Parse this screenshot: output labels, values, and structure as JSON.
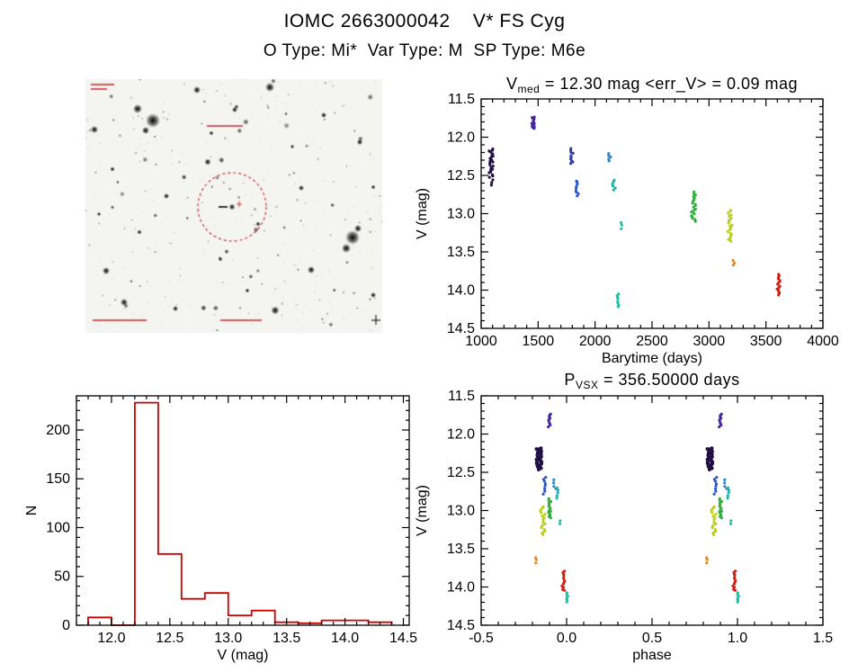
{
  "page": {
    "title": "IOMC 2663000042    V* FS Cyg",
    "subtitle": "O Type: Mi*  Var Type: M  SP Type: M6e"
  },
  "finder": {
    "background": "#f4f4f1",
    "circle_color": "#cc3333",
    "annotation_color": "#cc3333",
    "star_color": "#0a0a0c"
  },
  "colors": {
    "axis": "#000000",
    "histogram": "#cf0000"
  },
  "chart_data": [
    {
      "id": "light-curve",
      "type": "scatter",
      "title": {
        "var": "V",
        "var_sub": "med",
        "rest": " = 12.30 mag <err_V> = 0.09 mag"
      },
      "xlabel": "Barytime (days)",
      "ylabel": "V (mag)",
      "xlim": [
        1000,
        4000
      ],
      "ylim": [
        11.5,
        14.5
      ],
      "y_inverted": true,
      "xticks": [
        1000,
        1500,
        2000,
        2500,
        3000,
        3500,
        4000
      ],
      "xtick_labels": [
        "1000",
        "1500",
        "2000",
        "2500",
        "3000",
        "3500",
        "4000"
      ],
      "yticks": [
        11.5,
        12.0,
        12.5,
        13.0,
        13.5,
        14.0,
        14.5
      ],
      "ytick_labels": [
        "11.5",
        "12.0",
        "12.5",
        "13.0",
        "13.5",
        "14.0",
        "14.5"
      ],
      "x_minor": 100,
      "y_minor": 0.1,
      "clusters": [
        {
          "x": 1090,
          "v_min": 12.15,
          "v_max": 12.52,
          "n": 24,
          "color": "#201044"
        },
        {
          "x": 1092,
          "v_min": 12.56,
          "v_max": 12.63,
          "n": 3,
          "color": "#201044"
        },
        {
          "x": 1455,
          "v_min": 11.73,
          "v_max": 11.89,
          "n": 14,
          "color": "#46269e"
        },
        {
          "x": 1795,
          "v_min": 12.15,
          "v_max": 12.35,
          "n": 10,
          "color": "#2e3ea8"
        },
        {
          "x": 1845,
          "v_min": 12.57,
          "v_max": 12.77,
          "n": 9,
          "color": "#2b55cc"
        },
        {
          "x": 2125,
          "v_min": 12.22,
          "v_max": 12.31,
          "n": 5,
          "color": "#2e86c8"
        },
        {
          "x": 2165,
          "v_min": 12.56,
          "v_max": 12.69,
          "n": 6,
          "color": "#1db4ae"
        },
        {
          "x": 2230,
          "v_min": 13.12,
          "v_max": 13.19,
          "n": 3,
          "color": "#16c2a2"
        },
        {
          "x": 2195,
          "v_min": 14.05,
          "v_max": 14.22,
          "n": 8,
          "color": "#16c2a2"
        },
        {
          "x": 2865,
          "v_min": 12.72,
          "v_max": 13.1,
          "n": 20,
          "color": "#2fae3c"
        },
        {
          "x": 3185,
          "v_min": 12.95,
          "v_max": 13.36,
          "n": 20,
          "color": "#bccc1e"
        },
        {
          "x": 3215,
          "v_min": 13.61,
          "v_max": 13.68,
          "n": 3,
          "color": "#e2891c"
        },
        {
          "x": 3610,
          "v_min": 13.79,
          "v_max": 14.06,
          "n": 15,
          "color": "#cf2014"
        }
      ]
    },
    {
      "id": "histogram",
      "type": "bar",
      "xlabel": "V (mag)",
      "ylabel": "N",
      "xlim": [
        11.7,
        14.55
      ],
      "ylim": [
        0,
        235
      ],
      "y_inverted": false,
      "xticks": [
        12.0,
        12.5,
        13.0,
        13.5,
        14.0,
        14.5
      ],
      "xtick_labels": [
        "12.0",
        "12.5",
        "13.0",
        "13.5",
        "14.0",
        "14.5"
      ],
      "yticks": [
        0,
        50,
        100,
        150,
        200
      ],
      "ytick_labels": [
        "0",
        "50",
        "100",
        "150",
        "200"
      ],
      "x_minor": 0.1,
      "y_minor": 10,
      "color": "#cf0000",
      "bin_start": 11.8,
      "bin_width": 0.2,
      "counts": [
        8,
        0,
        228,
        73,
        27,
        33,
        10,
        15,
        3,
        2,
        5,
        5,
        3
      ]
    },
    {
      "id": "phase-curve",
      "type": "scatter",
      "title": {
        "var": "P",
        "var_sub": "VSX",
        "rest": " = 356.50000 days"
      },
      "xlabel": "phase",
      "ylabel": "V (mag)",
      "xlim": [
        -0.5,
        1.5
      ],
      "ylim": [
        11.5,
        14.5
      ],
      "y_inverted": true,
      "fold_offset": 1,
      "xticks": [
        -0.5,
        0.0,
        0.5,
        1.0,
        1.5
      ],
      "xtick_labels": [
        "-0.5",
        "0.0",
        "0.5",
        "1.0",
        "1.5"
      ],
      "yticks": [
        11.5,
        12.0,
        12.5,
        13.0,
        13.5,
        14.0,
        14.5
      ],
      "ytick_labels": [
        "11.5",
        "12.0",
        "12.5",
        "13.0",
        "13.5",
        "14.0",
        "14.5"
      ],
      "x_minor": 0.1,
      "y_minor": 0.1,
      "clusters": [
        {
          "x": -0.16,
          "v_min": 12.18,
          "v_max": 12.46,
          "n": 36,
          "color": "#201044",
          "size": 2.0,
          "jx": 3.2
        },
        {
          "x": -0.1,
          "v_min": 11.74,
          "v_max": 11.9,
          "n": 10,
          "color": "#46269e"
        },
        {
          "x": -0.13,
          "v_min": 12.56,
          "v_max": 12.78,
          "n": 8,
          "color": "#2b55cc"
        },
        {
          "x": -0.07,
          "v_min": 12.6,
          "v_max": 12.72,
          "n": 4,
          "color": "#2e86c8"
        },
        {
          "x": -0.05,
          "v_min": 12.7,
          "v_max": 12.84,
          "n": 5,
          "color": "#1db4ae"
        },
        {
          "x": -0.1,
          "v_min": 12.85,
          "v_max": 13.1,
          "n": 14,
          "color": "#2fae3c"
        },
        {
          "x": -0.14,
          "v_min": 12.95,
          "v_max": 13.32,
          "n": 16,
          "color": "#bccc1e"
        },
        {
          "x": -0.18,
          "v_min": 13.62,
          "v_max": 13.68,
          "n": 3,
          "color": "#e2891c"
        },
        {
          "x": -0.02,
          "v_min": 13.79,
          "v_max": 14.05,
          "n": 13,
          "color": "#cf2014"
        },
        {
          "x": 0.0,
          "v_min": 14.08,
          "v_max": 14.2,
          "n": 6,
          "color": "#16c2a2"
        },
        {
          "x": -0.04,
          "v_min": 13.13,
          "v_max": 13.18,
          "n": 2,
          "color": "#16c2a2"
        }
      ]
    }
  ]
}
